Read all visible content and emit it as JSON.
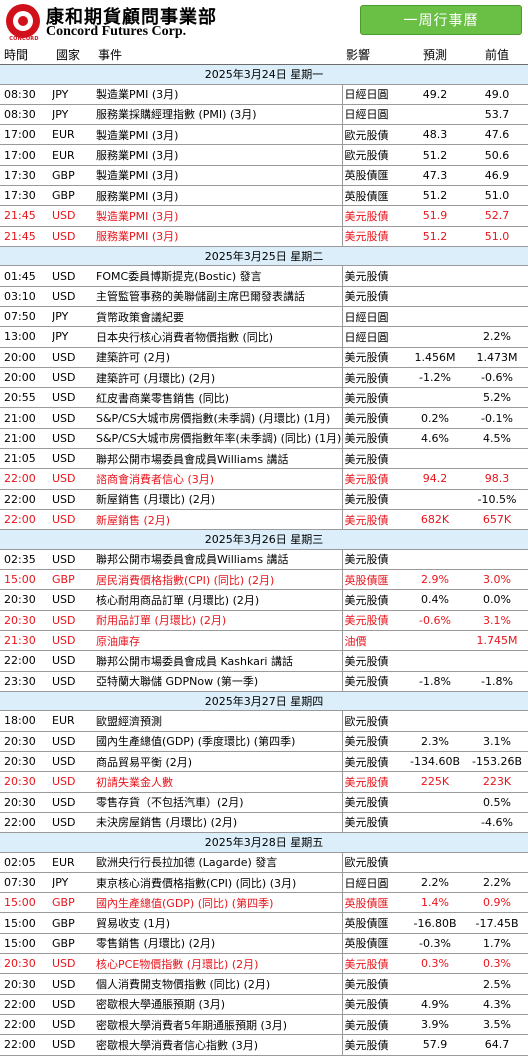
{
  "header": {
    "logo_cn": "康和期貨顧問事業部",
    "logo_en": "Concord Futures Corp.",
    "logo_sub": "CONCORD",
    "title": "一周行事曆"
  },
  "columns": {
    "time": "時間",
    "country": "國家",
    "event": "事件",
    "impact": "影響",
    "forecast": "預測",
    "previous": "前值"
  },
  "colors": {
    "highlight_red": "#e8141b",
    "day_header_bg": "#dbeef9",
    "title_green": "#6abf45",
    "logo_red": "#d0101a"
  },
  "days": [
    {
      "label": "2025年3月24日  星期一",
      "events": [
        {
          "time": "08:30",
          "country": "JPY",
          "event": "製造業PMI (3月)",
          "impact": "日經日圓",
          "forecast": "49.2",
          "previous": "49.0",
          "highlight": false
        },
        {
          "time": "08:30",
          "country": "JPY",
          "event": "服務業採購經理指數 (PMI) (3月)",
          "impact": "日經日圓",
          "forecast": "",
          "previous": "53.7",
          "highlight": false
        },
        {
          "time": "17:00",
          "country": "EUR",
          "event": "製造業PMI (3月)",
          "impact": "歐元股債",
          "forecast": "48.3",
          "previous": "47.6",
          "highlight": false
        },
        {
          "time": "17:00",
          "country": "EUR",
          "event": "服務業PMI (3月)",
          "impact": "歐元股債",
          "forecast": "51.2",
          "previous": "50.6",
          "highlight": false
        },
        {
          "time": "17:30",
          "country": "GBP",
          "event": "製造業PMI (3月)",
          "impact": "英股債匯",
          "forecast": "47.3",
          "previous": "46.9",
          "highlight": false
        },
        {
          "time": "17:30",
          "country": "GBP",
          "event": "服務業PMI (3月)",
          "impact": "英股債匯",
          "forecast": "51.2",
          "previous": "51.0",
          "highlight": false
        },
        {
          "time": "21:45",
          "country": "USD",
          "event": "製造業PMI (3月)",
          "impact": "美元股債",
          "forecast": "51.9",
          "previous": "52.7",
          "highlight": true
        },
        {
          "time": "21:45",
          "country": "USD",
          "event": "服務業PMI (3月)",
          "impact": "美元股債",
          "forecast": "51.2",
          "previous": "51.0",
          "highlight": true
        }
      ]
    },
    {
      "label": "2025年3月25日  星期二",
      "events": [
        {
          "time": "01:45",
          "country": "USD",
          "event": "FOMC委員博斯提克(Bostic) 發言",
          "impact": "美元股債",
          "forecast": "",
          "previous": "",
          "highlight": false
        },
        {
          "time": "03:10",
          "country": "USD",
          "event": "主管監管事務的美聯儲副主席巴爾發表講話",
          "impact": "美元股債",
          "forecast": "",
          "previous": "",
          "highlight": false
        },
        {
          "time": "07:50",
          "country": "JPY",
          "event": "貨幣政策會議紀要",
          "impact": "日經日圓",
          "forecast": "",
          "previous": "",
          "highlight": false
        },
        {
          "time": "13:00",
          "country": "JPY",
          "event": "日本央行核心消費者物價指數 (同比)",
          "impact": "日經日圓",
          "forecast": "",
          "previous": "2.2%",
          "highlight": false
        },
        {
          "time": "20:00",
          "country": "USD",
          "event": "建築許可 (2月)",
          "impact": "美元股債",
          "forecast": "1.456M",
          "previous": "1.473M",
          "highlight": false
        },
        {
          "time": "20:00",
          "country": "USD",
          "event": "建築許可 (月環比) (2月)",
          "impact": "美元股債",
          "forecast": "-1.2%",
          "previous": "-0.6%",
          "highlight": false
        },
        {
          "time": "20:55",
          "country": "USD",
          "event": "紅皮書商業零售銷售 (同比)",
          "impact": "美元股債",
          "forecast": "",
          "previous": "5.2%",
          "highlight": false
        },
        {
          "time": "21:00",
          "country": "USD",
          "event": "S&P/CS大城市房價指數(未季調) (月環比) (1月)",
          "impact": "美元股債",
          "forecast": "0.2%",
          "previous": "-0.1%",
          "highlight": false
        },
        {
          "time": "21:00",
          "country": "USD",
          "event": "S&P/CS大城市房價指數年率(未季調) (同比) (1月)",
          "impact": "美元股債",
          "forecast": "4.6%",
          "previous": "4.5%",
          "highlight": false
        },
        {
          "time": "21:05",
          "country": "USD",
          "event": "聯邦公開市場委員會成員Williams 講話",
          "impact": "美元股債",
          "forecast": "",
          "previous": "",
          "highlight": false
        },
        {
          "time": "22:00",
          "country": "USD",
          "event": "諮商會消費者信心 (3月)",
          "impact": "美元股債",
          "forecast": "94.2",
          "previous": "98.3",
          "highlight": true
        },
        {
          "time": "22:00",
          "country": "USD",
          "event": "新屋銷售 (月環比) (2月)",
          "impact": "美元股債",
          "forecast": "",
          "previous": "-10.5%",
          "highlight": false
        },
        {
          "time": "22:00",
          "country": "USD",
          "event": "新屋銷售 (2月)",
          "impact": "美元股債",
          "forecast": "682K",
          "previous": "657K",
          "highlight": true
        }
      ]
    },
    {
      "label": "2025年3月26日  星期三",
      "events": [
        {
          "time": "02:35",
          "country": "USD",
          "event": "聯邦公開市場委員會成員Williams 講話",
          "impact": "美元股債",
          "forecast": "",
          "previous": "",
          "highlight": false
        },
        {
          "time": "15:00",
          "country": "GBP",
          "event": "居民消費價格指數(CPI) (同比) (2月)",
          "impact": "英股債匯",
          "forecast": "2.9%",
          "previous": "3.0%",
          "highlight": true
        },
        {
          "time": "20:30",
          "country": "USD",
          "event": "核心耐用商品訂單 (月環比) (2月)",
          "impact": "美元股債",
          "forecast": "0.4%",
          "previous": "0.0%",
          "highlight": false
        },
        {
          "time": "20:30",
          "country": "USD",
          "event": "耐用品訂單 (月環比) (2月)",
          "impact": "美元股債",
          "forecast": "-0.6%",
          "previous": "3.1%",
          "highlight": true
        },
        {
          "time": "21:30",
          "country": "USD",
          "event": "原油庫存",
          "impact": "油價",
          "forecast": "",
          "previous": "1.745M",
          "highlight": true
        },
        {
          "time": "22:00",
          "country": "USD",
          "event": "聯邦公開市場委員會成員 Kashkari 講話",
          "impact": "美元股債",
          "forecast": "",
          "previous": "",
          "highlight": false
        },
        {
          "time": "23:30",
          "country": "USD",
          "event": "亞特蘭大聯儲 GDPNow (第一季)",
          "impact": "美元股債",
          "forecast": "-1.8%",
          "previous": "-1.8%",
          "highlight": false
        }
      ]
    },
    {
      "label": "2025年3月27日  星期四",
      "events": [
        {
          "time": "18:00",
          "country": "EUR",
          "event": "歐盟經濟預測",
          "impact": "歐元股債",
          "forecast": "",
          "previous": "",
          "highlight": false
        },
        {
          "time": "20:30",
          "country": "USD",
          "event": "國內生產總值(GDP) (季度環比) (第四季)",
          "impact": "美元股債",
          "forecast": "2.3%",
          "previous": "3.1%",
          "highlight": false
        },
        {
          "time": "20:30",
          "country": "USD",
          "event": "商品貿易平衡 (2月)",
          "impact": "美元股債",
          "forecast": "-134.60B",
          "previous": "-153.26B",
          "highlight": false
        },
        {
          "time": "20:30",
          "country": "USD",
          "event": "初請失業金人數",
          "impact": "美元股債",
          "forecast": "225K",
          "previous": "223K",
          "highlight": true
        },
        {
          "time": "20:30",
          "country": "USD",
          "event": "零售存貨（不包括汽車）(2月)",
          "impact": "美元股債",
          "forecast": "",
          "previous": "0.5%",
          "highlight": false
        },
        {
          "time": "22:00",
          "country": "USD",
          "event": "未決房屋銷售 (月環比) (2月)",
          "impact": "美元股債",
          "forecast": "",
          "previous": "-4.6%",
          "highlight": false
        }
      ]
    },
    {
      "label": "2025年3月28日  星期五",
      "events": [
        {
          "time": "02:05",
          "country": "EUR",
          "event": "歐洲央行行長拉加德 (Lagarde) 發言",
          "impact": "歐元股債",
          "forecast": "",
          "previous": "",
          "highlight": false
        },
        {
          "time": "07:30",
          "country": "JPY",
          "event": "東京核心消費價格指數(CPI) (同比) (3月)",
          "impact": "日經日圓",
          "forecast": "2.2%",
          "previous": "2.2%",
          "highlight": false
        },
        {
          "time": "15:00",
          "country": "GBP",
          "event": "國內生產總值(GDP) (同比) (第四季)",
          "impact": "英股債匯",
          "forecast": "1.4%",
          "previous": "0.9%",
          "highlight": true
        },
        {
          "time": "15:00",
          "country": "GBP",
          "event": "貿易收支 (1月)",
          "impact": "英股債匯",
          "forecast": "-16.80B",
          "previous": "-17.45B",
          "highlight": false
        },
        {
          "time": "15:00",
          "country": "GBP",
          "event": "零售銷售 (月環比) (2月)",
          "impact": "英股債匯",
          "forecast": "-0.3%",
          "previous": "1.7%",
          "highlight": false
        },
        {
          "time": "20:30",
          "country": "USD",
          "event": "核心PCE物價指數 (月環比) (2月)",
          "impact": "美元股債",
          "forecast": "0.3%",
          "previous": "0.3%",
          "highlight": true
        },
        {
          "time": "20:30",
          "country": "USD",
          "event": "個人消費開支物價指數 (同比) (2月)",
          "impact": "美元股債",
          "forecast": "",
          "previous": "2.5%",
          "highlight": false
        },
        {
          "time": "22:00",
          "country": "USD",
          "event": "密歇根大學通脹預期 (3月)",
          "impact": "美元股債",
          "forecast": "4.9%",
          "previous": "4.3%",
          "highlight": false
        },
        {
          "time": "22:00",
          "country": "USD",
          "event": "密歇根大學消費者5年期通脹預期 (3月)",
          "impact": "美元股債",
          "forecast": "3.9%",
          "previous": "3.5%",
          "highlight": false
        },
        {
          "time": "22:00",
          "country": "USD",
          "event": "密歇根大學消費者信心指數 (3月)",
          "impact": "美元股債",
          "forecast": "57.9",
          "previous": "64.7",
          "highlight": false
        }
      ]
    }
  ]
}
